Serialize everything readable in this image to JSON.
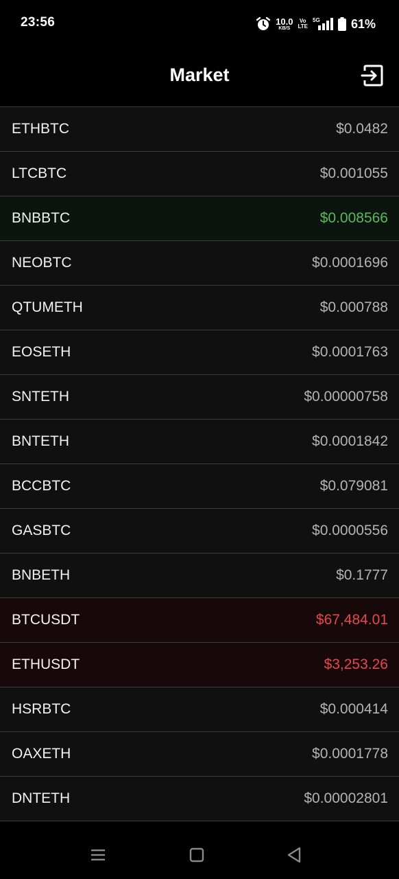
{
  "status_bar": {
    "time": "23:56",
    "net_speed": "10.0",
    "net_unit": "KB/S",
    "volte_top": "Vo",
    "volte_bottom": "LTE",
    "network": "5G",
    "battery": "61%"
  },
  "header": {
    "title": "Market",
    "logout_icon": "logout-icon"
  },
  "colors": {
    "up": "#5cb85f",
    "down": "#e5484d",
    "neutral": "#b4b4b4"
  },
  "market": {
    "items": [
      {
        "symbol": "ETHBTC",
        "price": "$0.0482",
        "trend": "neutral"
      },
      {
        "symbol": "LTCBTC",
        "price": "$0.001055",
        "trend": "neutral"
      },
      {
        "symbol": "BNBBTC",
        "price": "$0.008566",
        "trend": "up"
      },
      {
        "symbol": "NEOBTC",
        "price": "$0.0001696",
        "trend": "neutral"
      },
      {
        "symbol": "QTUMETH",
        "price": "$0.000788",
        "trend": "neutral"
      },
      {
        "symbol": "EOSETH",
        "price": "$0.0001763",
        "trend": "neutral"
      },
      {
        "symbol": "SNTETH",
        "price": "$0.00000758",
        "trend": "neutral"
      },
      {
        "symbol": "BNTETH",
        "price": "$0.0001842",
        "trend": "neutral"
      },
      {
        "symbol": "BCCBTC",
        "price": "$0.079081",
        "trend": "neutral"
      },
      {
        "symbol": "GASBTC",
        "price": "$0.0000556",
        "trend": "neutral"
      },
      {
        "symbol": "BNBETH",
        "price": "$0.1777",
        "trend": "neutral"
      },
      {
        "symbol": "BTCUSDT",
        "price": "$67,484.01",
        "trend": "down"
      },
      {
        "symbol": "ETHUSDT",
        "price": "$3,253.26",
        "trend": "down"
      },
      {
        "symbol": "HSRBTC",
        "price": "$0.000414",
        "trend": "neutral"
      },
      {
        "symbol": "OAXETH",
        "price": "$0.0001778",
        "trend": "neutral"
      },
      {
        "symbol": "DNTETH",
        "price": "$0.00002801",
        "trend": "neutral"
      }
    ]
  },
  "nav_bar": {
    "recents_icon": "menu-icon",
    "home_icon": "home-square-icon",
    "back_icon": "back-triangle-icon"
  }
}
